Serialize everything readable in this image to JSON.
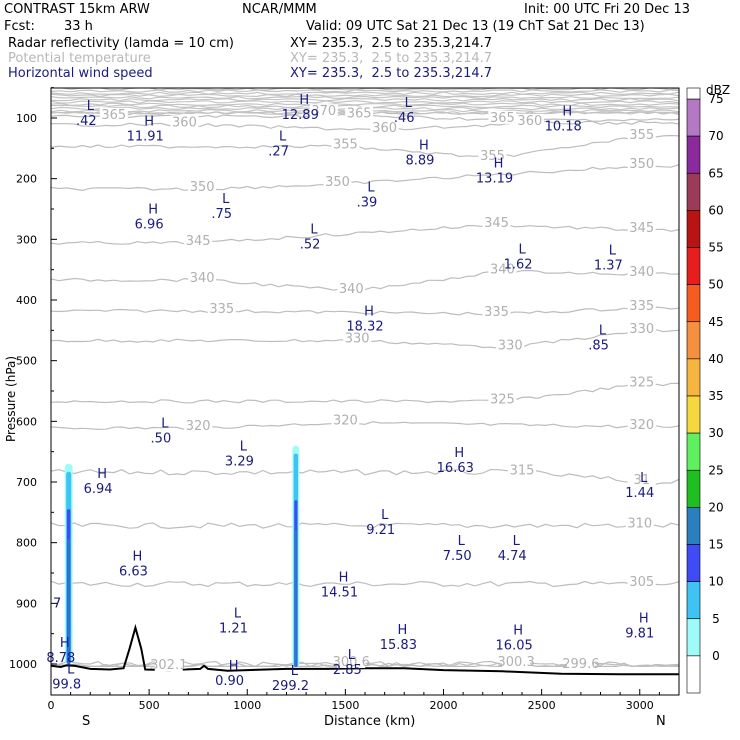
{
  "header": {
    "model": "CONTRAST 15km ARW",
    "org": "NCAR/MMM",
    "init": "Init: 00 UTC Fri 20 Dec 13",
    "fcst_label": "Fcst:",
    "fcst_value": "33 h",
    "valid": "Valid: 09 UTC Sat 21 Dec 13 (19 ChT Sat 21 Dec 13)",
    "fields": [
      {
        "name": "Radar reflectivity (lamda = 10 cm)",
        "xy": "XY= 235.3,  2.5 to 235.3,214.7",
        "color": "#000000"
      },
      {
        "name": "Potential temperature",
        "xy": "XY= 235.3,  2.5 to 235.3,214.7",
        "color": "#b8b8b8"
      },
      {
        "name": "Horizontal wind speed",
        "xy": "XY= 235.3,  2.5 to 235.3,214.7",
        "color": "#1a1a80"
      }
    ]
  },
  "chart_data": {
    "type": "cross-section",
    "xlabel": "Distance (km)",
    "ylabel": "Pressure (hPa)",
    "xlim": [
      0,
      3200
    ],
    "ylim": [
      1040,
      50
    ],
    "x_ticks": [
      0,
      500,
      1000,
      1500,
      2000,
      2500,
      3000
    ],
    "y_ticks": [
      100,
      200,
      300,
      400,
      500,
      600,
      700,
      800,
      900,
      1000
    ],
    "end_labels": {
      "left": "S",
      "right": "N"
    },
    "colorbar": {
      "units": "dBZ",
      "levels": [
        0,
        5,
        10,
        15,
        20,
        25,
        30,
        35,
        40,
        45,
        50,
        55,
        60,
        65,
        70,
        75
      ],
      "colors": [
        "#ffffff",
        "#9ffbf7",
        "#3fc3f5",
        "#3f4cf5",
        "#2a7fbf",
        "#1fbf1f",
        "#5fef5f",
        "#f5d73f",
        "#f5b53f",
        "#f5903f",
        "#f55c1f",
        "#e61e1e",
        "#b81414",
        "#9c3a5a",
        "#8a2a9c",
        "#b478c4"
      ]
    },
    "theta_contours": [
      {
        "level": 300,
        "labels": [
          {
            "x": 1530,
            "p": 1000,
            "t": "300.6"
          },
          {
            "x": 2370,
            "p": 1000,
            "t": "300.3"
          }
        ]
      },
      {
        "level": 299,
        "labels": [
          {
            "x": 2700,
            "p": 1003,
            "t": "299.6"
          }
        ]
      },
      {
        "level": 302,
        "labels": [
          {
            "x": 600,
            "p": 1005,
            "t": "302.1"
          }
        ]
      },
      {
        "level": 305,
        "labels": [
          {
            "x": 3010,
            "p": 868,
            "t": "305"
          }
        ]
      },
      {
        "level": 310,
        "labels": [
          {
            "x": 3000,
            "p": 772,
            "t": "310"
          }
        ]
      },
      {
        "level": 315,
        "labels": [
          {
            "x": 2400,
            "p": 684,
            "t": "315"
          },
          {
            "x": 3010,
            "p": 700,
            "t": "31"
          }
        ]
      },
      {
        "level": 320,
        "labels": [
          {
            "x": 750,
            "p": 611,
            "t": "320"
          },
          {
            "x": 1500,
            "p": 602,
            "t": "320"
          },
          {
            "x": 3010,
            "p": 609,
            "t": "320"
          }
        ]
      },
      {
        "level": 325,
        "labels": [
          {
            "x": 2300,
            "p": 567,
            "t": "325"
          },
          {
            "x": 3010,
            "p": 539,
            "t": "325"
          }
        ]
      },
      {
        "level": 330,
        "labels": [
          {
            "x": 1560,
            "p": 467,
            "t": "330"
          },
          {
            "x": 2340,
            "p": 478,
            "t": "330"
          },
          {
            "x": 3010,
            "p": 451,
            "t": "330"
          }
        ]
      },
      {
        "level": 335,
        "labels": [
          {
            "x": 870,
            "p": 418,
            "t": "335"
          },
          {
            "x": 2270,
            "p": 423,
            "t": "335"
          },
          {
            "x": 3010,
            "p": 413,
            "t": "335"
          }
        ]
      },
      {
        "level": 340,
        "labels": [
          {
            "x": 770,
            "p": 367,
            "t": "340"
          },
          {
            "x": 1530,
            "p": 385,
            "t": "340"
          },
          {
            "x": 2300,
            "p": 353,
            "t": "340"
          },
          {
            "x": 3010,
            "p": 357,
            "t": "340"
          }
        ]
      },
      {
        "level": 345,
        "labels": [
          {
            "x": 750,
            "p": 306,
            "t": "345"
          },
          {
            "x": 2270,
            "p": 276,
            "t": "345"
          },
          {
            "x": 3010,
            "p": 285,
            "t": "345"
          }
        ]
      },
      {
        "level": 350,
        "labels": [
          {
            "x": 770,
            "p": 217,
            "t": "350"
          },
          {
            "x": 1460,
            "p": 209,
            "t": "350"
          },
          {
            "x": 3010,
            "p": 179,
            "t": "350"
          }
        ]
      },
      {
        "level": 355,
        "labels": [
          {
            "x": 1500,
            "p": 147,
            "t": "355"
          },
          {
            "x": 2250,
            "p": 166,
            "t": "355"
          },
          {
            "x": 3010,
            "p": 131,
            "t": "355"
          }
        ]
      },
      {
        "level": 360,
        "labels": [
          {
            "x": 680,
            "p": 111,
            "t": "360"
          },
          {
            "x": 1700,
            "p": 120,
            "t": "360"
          },
          {
            "x": 2440,
            "p": 108,
            "t": "360"
          }
        ]
      },
      {
        "level": 365,
        "labels": [
          {
            "x": 320,
            "p": 98,
            "t": "365"
          },
          {
            "x": 1570,
            "p": 96,
            "t": "365"
          },
          {
            "x": 2300,
            "p": 103,
            "t": "365"
          }
        ]
      },
      {
        "level": 370,
        "labels": [
          {
            "x": 1390,
            "p": 92,
            "t": "370"
          }
        ]
      }
    ],
    "wind_extrema": [
      {
        "type": "L",
        "value": ".42",
        "x": 180,
        "p": 95
      },
      {
        "type": "H",
        "value": "12.89",
        "x": 1270,
        "p": 85
      },
      {
        "type": "L",
        "value": ".46",
        "x": 1800,
        "p": 90
      },
      {
        "type": "H",
        "value": "11.91",
        "x": 480,
        "p": 121
      },
      {
        "type": "H",
        "value": "10.18",
        "x": 2610,
        "p": 104
      },
      {
        "type": "L",
        "value": ".27",
        "x": 1160,
        "p": 145
      },
      {
        "type": "H",
        "value": "8.89",
        "x": 1880,
        "p": 160
      },
      {
        "type": "H",
        "value": "13.19",
        "x": 2260,
        "p": 190
      },
      {
        "type": "L",
        "value": ".39",
        "x": 1610,
        "p": 229
      },
      {
        "type": "L",
        "value": ".75",
        "x": 870,
        "p": 248
      },
      {
        "type": "H",
        "value": "6.96",
        "x": 500,
        "p": 266
      },
      {
        "type": "L",
        "value": ".52",
        "x": 1320,
        "p": 299
      },
      {
        "type": "L",
        "value": "1.62",
        "x": 2380,
        "p": 332
      },
      {
        "type": "L",
        "value": "1.37",
        "x": 2840,
        "p": 333
      },
      {
        "type": "H",
        "value": "18.32",
        "x": 1600,
        "p": 434
      },
      {
        "type": "L",
        "value": ".85",
        "x": 2790,
        "p": 465
      },
      {
        "type": "L",
        "value": ".50",
        "x": 560,
        "p": 618
      },
      {
        "type": "L",
        "value": "3.29",
        "x": 960,
        "p": 656
      },
      {
        "type": "H",
        "value": "16.63",
        "x": 2060,
        "p": 667
      },
      {
        "type": "H",
        "value": "6.94",
        "x": 240,
        "p": 702
      },
      {
        "type": "L",
        "value": "1.44",
        "x": 3000,
        "p": 708
      },
      {
        "type": "L",
        "value": "9.21",
        "x": 1680,
        "p": 769
      },
      {
        "type": "L",
        "value": "7.50",
        "x": 2070,
        "p": 812
      },
      {
        "type": "L",
        "value": "4.74",
        "x": 2350,
        "p": 812
      },
      {
        "type": "H",
        "value": "6.63",
        "x": 420,
        "p": 838
      },
      {
        "type": "H",
        "value": "14.51",
        "x": 1470,
        "p": 872
      },
      {
        "type": "L",
        "value": "1.21",
        "x": 930,
        "p": 932
      },
      {
        "type": "H",
        "value": "15.83",
        "x": 1770,
        "p": 959
      },
      {
        "type": "H",
        "value": "16.05",
        "x": 2360,
        "p": 960
      },
      {
        "type": "H",
        "value": "9.81",
        "x": 3000,
        "p": 940
      },
      {
        "type": "H",
        "value": "8.78",
        "x": 50,
        "p": 980
      },
      {
        "type": "L",
        "value": "2.85",
        "x": 1510,
        "p": 1000
      },
      {
        "type": "H",
        "value": "0.90",
        "x": 910,
        "p": 1018
      },
      {
        "type": "L",
        "value": "299.2",
        "x": 1220,
        "p": 1026
      },
      {
        "type": "L",
        "value": "99.8",
        "x": 80,
        "p": 1024
      }
    ],
    "terrain": [
      [
        0,
        1003
      ],
      [
        50,
        1005
      ],
      [
        80,
        1002
      ],
      [
        120,
        1003
      ],
      [
        200,
        1008
      ],
      [
        300,
        1009
      ],
      [
        370,
        1007
      ],
      [
        400,
        975
      ],
      [
        430,
        940
      ],
      [
        460,
        975
      ],
      [
        480,
        1009
      ],
      [
        600,
        1010
      ],
      [
        760,
        1008
      ],
      [
        780,
        1003
      ],
      [
        800,
        1008
      ],
      [
        900,
        1011
      ],
      [
        1000,
        1010
      ],
      [
        1200,
        1008
      ],
      [
        1400,
        1008
      ],
      [
        1600,
        1007
      ],
      [
        1800,
        1007
      ],
      [
        2000,
        1010
      ],
      [
        2300,
        1012
      ],
      [
        2600,
        1016
      ],
      [
        2900,
        1017
      ],
      [
        3200,
        1017
      ]
    ],
    "reflectivity_columns": [
      {
        "x0": 70,
        "x1": 110,
        "p_top": 670,
        "core_top": 745,
        "core_bottom": 1000
      },
      {
        "x0": 1230,
        "x1": 1265,
        "p_top": 640,
        "core_top": 730,
        "core_bottom": 1005
      }
    ]
  }
}
